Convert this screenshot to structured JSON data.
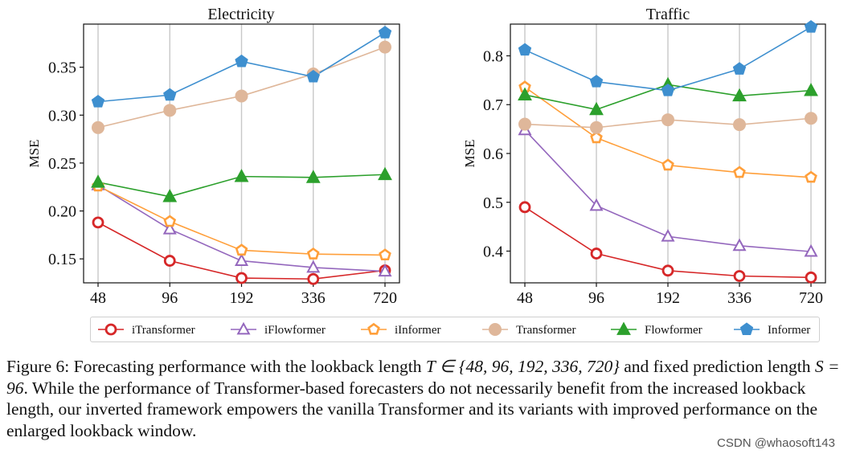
{
  "chart_data": [
    {
      "type": "line",
      "title": "Electricity",
      "xlabel": "",
      "ylabel": "MSE",
      "categories": [
        "48",
        "96",
        "192",
        "336",
        "720"
      ],
      "ylim": [
        0.125,
        0.395
      ],
      "yticks": [
        "0.15",
        "0.20",
        "0.25",
        "0.30",
        "0.35"
      ],
      "ytick_values": [
        0.15,
        0.2,
        0.25,
        0.3,
        0.35
      ],
      "grid": "vertical",
      "series": [
        {
          "name": "iTransformer",
          "values": [
            0.188,
            0.148,
            0.13,
            0.129,
            0.138
          ]
        },
        {
          "name": "iFlowformer",
          "values": [
            0.227,
            0.181,
            0.148,
            0.141,
            0.137
          ]
        },
        {
          "name": "iInformer",
          "values": [
            0.226,
            0.189,
            0.159,
            0.155,
            0.154
          ]
        },
        {
          "name": "Transformer",
          "values": [
            0.287,
            0.305,
            0.32,
            0.343,
            0.371
          ]
        },
        {
          "name": "Flowformer",
          "values": [
            0.23,
            0.215,
            0.236,
            0.235,
            0.238
          ]
        },
        {
          "name": "Informer",
          "values": [
            0.314,
            0.321,
            0.356,
            0.34,
            0.386
          ]
        }
      ]
    },
    {
      "type": "line",
      "title": "Traffic",
      "xlabel": "",
      "ylabel": "MSE",
      "categories": [
        "48",
        "96",
        "192",
        "336",
        "720"
      ],
      "ylim": [
        0.335,
        0.865
      ],
      "yticks": [
        "0.4",
        "0.5",
        "0.6",
        "0.7",
        "0.8"
      ],
      "ytick_values": [
        0.4,
        0.5,
        0.6,
        0.7,
        0.8
      ],
      "grid": "vertical",
      "series": [
        {
          "name": "iTransformer",
          "values": [
            0.49,
            0.395,
            0.36,
            0.349,
            0.346
          ]
        },
        {
          "name": "iFlowformer",
          "values": [
            0.648,
            0.493,
            0.43,
            0.411,
            0.399
          ]
        },
        {
          "name": "iInformer",
          "values": [
            0.736,
            0.632,
            0.576,
            0.561,
            0.551
          ]
        },
        {
          "name": "Transformer",
          "values": [
            0.66,
            0.653,
            0.669,
            0.659,
            0.672
          ]
        },
        {
          "name": "Flowformer",
          "values": [
            0.72,
            0.69,
            0.741,
            0.718,
            0.729
          ]
        },
        {
          "name": "Informer",
          "values": [
            0.812,
            0.747,
            0.729,
            0.773,
            0.859
          ]
        }
      ]
    }
  ],
  "legend": [
    "iTransformer",
    "iFlowformer",
    "iInformer",
    "Transformer",
    "Flowformer",
    "Informer"
  ],
  "series_styles": {
    "iTransformer": {
      "color": "#d62728",
      "marker": "circle-open"
    },
    "iFlowformer": {
      "color": "#9467bd",
      "marker": "triangle-open"
    },
    "iInformer": {
      "color": "#ff9f3a",
      "marker": "pentagon-open"
    },
    "Transformer": {
      "color": "#dfb79a",
      "marker": "circle-filled"
    },
    "Flowformer": {
      "color": "#2ca02c",
      "marker": "triangle-filled"
    },
    "Informer": {
      "color": "#3e8fcf",
      "marker": "pentagon-filled"
    }
  },
  "caption": {
    "label": "Figure 6:",
    "text_1": "Forecasting performance with the lookback length",
    "math_1": "T ∈ {48, 96, 192, 336, 720}",
    "text_2": "and fixed prediction length",
    "math_2": "S = 96",
    "text_3": ". While the performance of Transformer-based forecasters do not necessarily benefit from the increased lookback length, our inverted framework empowers the vanilla Transformer and its variants with improved performance on the enlarged lookback window."
  },
  "watermark": "CSDN @whaosoft143"
}
